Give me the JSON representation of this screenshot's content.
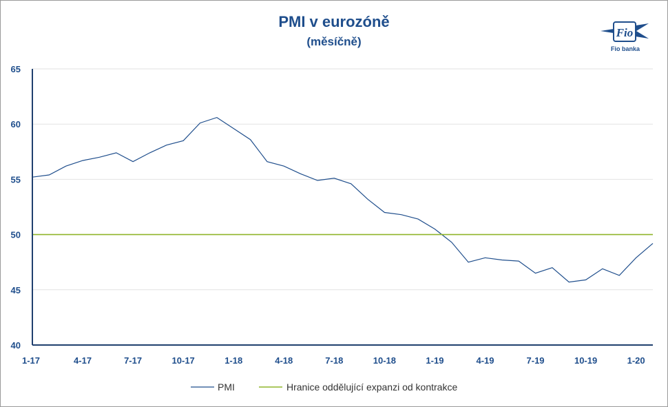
{
  "logo": {
    "label": "Fio banka",
    "mark": "Fio"
  },
  "chart_data": {
    "type": "line",
    "title": "PMI v eurozóně",
    "subtitle": "(měsíčně)",
    "xlabel": "",
    "ylabel": "",
    "ylim": [
      40,
      65
    ],
    "yticks": [
      40,
      45,
      50,
      55,
      60,
      65
    ],
    "x": [
      "1-17",
      "2-17",
      "3-17",
      "4-17",
      "5-17",
      "6-17",
      "7-17",
      "8-17",
      "9-17",
      "10-17",
      "11-17",
      "12-17",
      "1-18",
      "2-18",
      "3-18",
      "4-18",
      "5-18",
      "6-18",
      "7-18",
      "8-18",
      "9-18",
      "10-18",
      "11-18",
      "12-18",
      "1-19",
      "2-19",
      "3-19",
      "4-19",
      "5-19",
      "6-19",
      "7-19",
      "8-19",
      "9-19",
      "10-19",
      "11-19",
      "12-19",
      "1-20",
      "2-20"
    ],
    "xtick_labels": [
      "1-17",
      "4-17",
      "7-17",
      "10-17",
      "1-18",
      "4-18",
      "7-18",
      "10-18",
      "1-19",
      "4-19",
      "7-19",
      "10-19",
      "1-20"
    ],
    "series": [
      {
        "name": "PMI",
        "color": "#1f4e8c",
        "values": [
          55.2,
          55.4,
          56.2,
          56.7,
          57.0,
          57.4,
          56.6,
          57.4,
          58.1,
          58.5,
          60.1,
          60.6,
          59.6,
          58.6,
          56.6,
          56.2,
          55.5,
          54.9,
          55.1,
          54.6,
          53.2,
          52.0,
          51.8,
          51.4,
          50.5,
          49.3,
          47.5,
          47.9,
          47.7,
          47.6,
          46.5,
          47.0,
          45.7,
          45.9,
          46.9,
          46.3,
          47.9,
          49.2
        ]
      },
      {
        "name": "Hranice oddělující expanzi od kontrakce",
        "color": "#8fb52a",
        "values": [
          50,
          50,
          50,
          50,
          50,
          50,
          50,
          50,
          50,
          50,
          50,
          50,
          50,
          50,
          50,
          50,
          50,
          50,
          50,
          50,
          50,
          50,
          50,
          50,
          50,
          50,
          50,
          50,
          50,
          50,
          50,
          50,
          50,
          50,
          50,
          50,
          50,
          50
        ]
      }
    ],
    "grid": true,
    "legend": "bottom"
  }
}
